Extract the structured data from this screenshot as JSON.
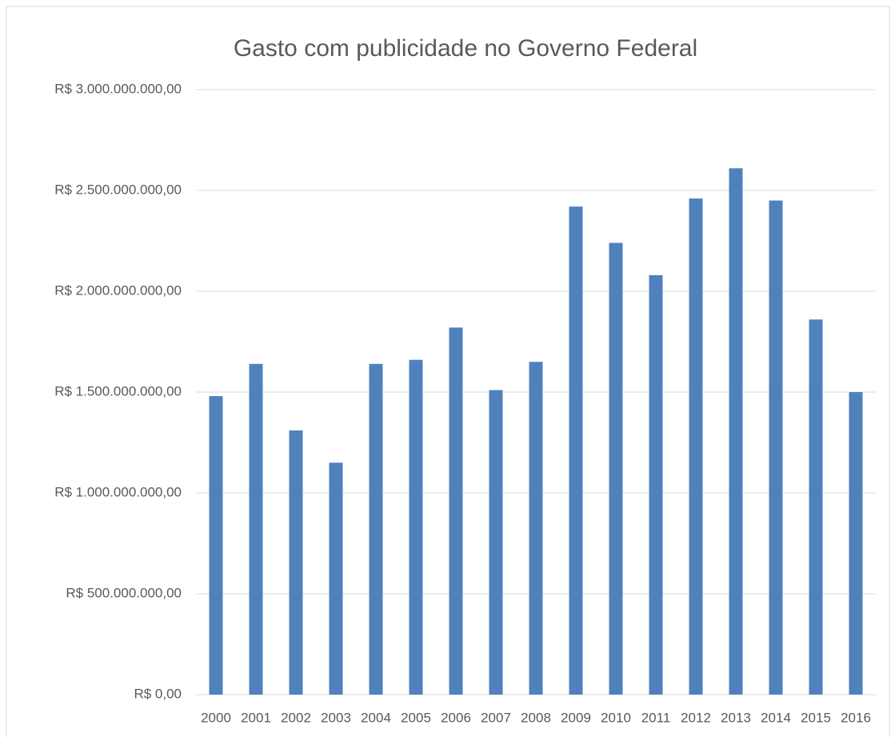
{
  "chart_data": {
    "type": "bar",
    "title": "Gasto com publicidade no Governo Federal",
    "categories": [
      "2000",
      "2001",
      "2002",
      "2003",
      "2004",
      "2005",
      "2006",
      "2007",
      "2008",
      "2009",
      "2010",
      "2011",
      "2012",
      "2013",
      "2014",
      "2015",
      "2016"
    ],
    "values": [
      1480000000,
      1640000000,
      1310000000,
      1150000000,
      1640000000,
      1660000000,
      1820000000,
      1510000000,
      1650000000,
      2420000000,
      2240000000,
      2080000000,
      2460000000,
      2610000000,
      2450000000,
      1860000000,
      1500000000
    ],
    "color": "#4f81bd",
    "ylim": [
      0,
      3000000000
    ],
    "yticks": [
      {
        "value": 0,
        "label": "R$ 0,00"
      },
      {
        "value": 500000000,
        "label": "R$ 500.000.000,00"
      },
      {
        "value": 1000000000,
        "label": "R$ 1.000.000.000,00"
      },
      {
        "value": 1500000000,
        "label": "R$ 1.500.000.000,00"
      },
      {
        "value": 2000000000,
        "label": "R$ 2.000.000.000,00"
      },
      {
        "value": 2500000000,
        "label": "R$ 2.500.000.000,00"
      },
      {
        "value": 3000000000,
        "label": "R$ 3.000.000.000,00"
      }
    ],
    "grid": true
  }
}
